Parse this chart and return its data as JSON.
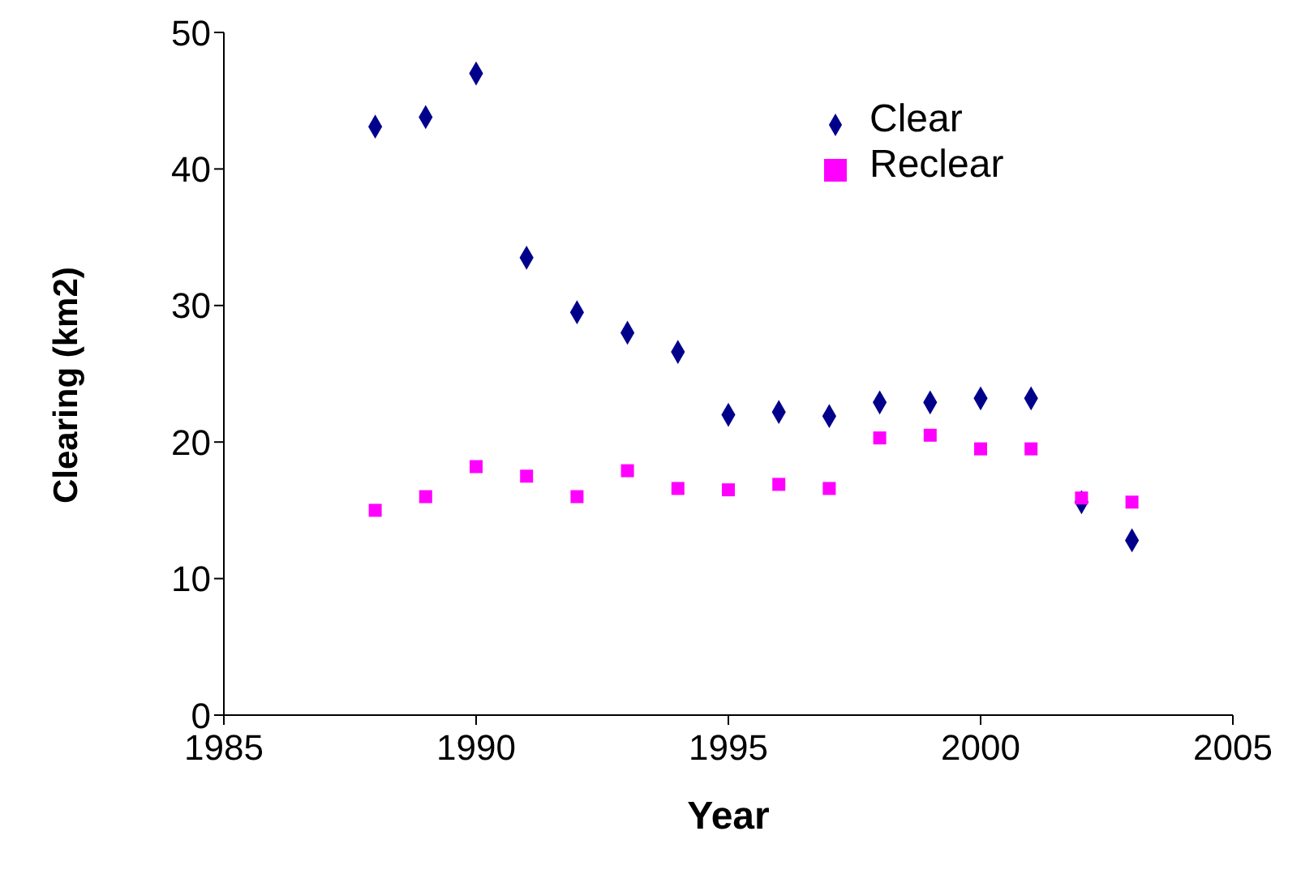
{
  "chart_data": {
    "type": "scatter",
    "xlabel": "Year",
    "ylabel": "Clearing (km2)",
    "x": [
      1988,
      1989,
      1990,
      1991,
      1992,
      1993,
      1994,
      1995,
      1996,
      1997,
      1998,
      1999,
      2000,
      2001,
      2002,
      2003
    ],
    "xlim": [
      1985,
      2005
    ],
    "xticks": [
      1985,
      1990,
      1995,
      2000,
      2005
    ],
    "ylim": [
      0,
      50
    ],
    "yticks": [
      0,
      10,
      20,
      30,
      40,
      50
    ],
    "grid": false,
    "legend": "top right",
    "series": [
      {
        "name": "Clear",
        "color": "#00008b",
        "marker": "diamond",
        "values": [
          43.1,
          43.8,
          47.0,
          33.5,
          29.5,
          28.0,
          26.6,
          22.0,
          22.2,
          21.9,
          22.9,
          22.9,
          23.2,
          23.2,
          15.6,
          12.8
        ]
      },
      {
        "name": "Reclear",
        "color": "#ff00ff",
        "marker": "square",
        "values": [
          15.0,
          16.0,
          18.2,
          17.5,
          16.0,
          17.9,
          16.6,
          16.5,
          16.9,
          16.6,
          20.3,
          20.5,
          19.5,
          19.5,
          15.9,
          15.6
        ]
      }
    ]
  }
}
